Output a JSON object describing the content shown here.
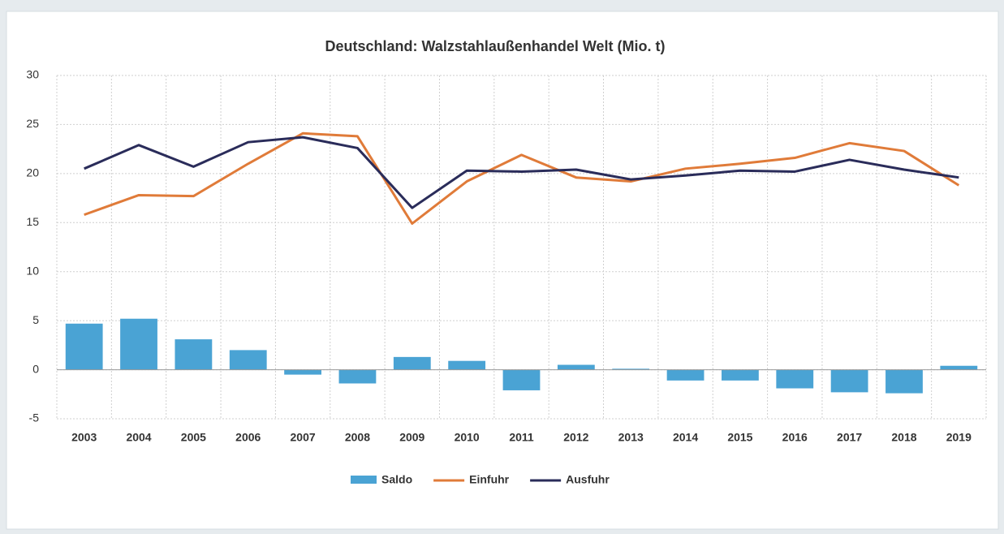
{
  "chart_data": {
    "type": "combo",
    "title": "Deutschland: Walzstahlaußenhandel Welt (Mio. t)",
    "categories": [
      "2003",
      "2004",
      "2005",
      "2006",
      "2007",
      "2008",
      "2009",
      "2010",
      "2011",
      "2012",
      "2013",
      "2014",
      "2015",
      "2016",
      "2017",
      "2018",
      "2019"
    ],
    "series": [
      {
        "name": "Saldo",
        "type": "bar",
        "color": "#4aa3d4",
        "values": [
          4.7,
          5.2,
          3.1,
          2.0,
          -0.5,
          -1.4,
          1.3,
          0.9,
          -2.1,
          0.5,
          0.1,
          -1.1,
          -1.1,
          -1.9,
          -2.3,
          -2.4,
          0.4
        ]
      },
      {
        "name": "Einfuhr",
        "type": "line",
        "color": "#e07b39",
        "values": [
          15.8,
          17.8,
          17.7,
          21.0,
          24.1,
          23.8,
          14.9,
          19.2,
          21.9,
          19.6,
          19.2,
          20.5,
          21.0,
          21.6,
          23.1,
          22.3,
          18.8
        ]
      },
      {
        "name": "Ausfuhr",
        "type": "line",
        "color": "#2a2c5a",
        "values": [
          20.5,
          22.9,
          20.7,
          23.2,
          23.7,
          22.6,
          16.5,
          20.3,
          20.2,
          20.4,
          19.4,
          19.8,
          20.3,
          20.2,
          21.4,
          20.4,
          19.6
        ]
      }
    ],
    "ylim": [
      -5,
      30
    ],
    "yticks": [
      -5,
      0,
      5,
      10,
      15,
      20,
      25,
      30
    ],
    "grid": true,
    "legend": "bottom"
  }
}
